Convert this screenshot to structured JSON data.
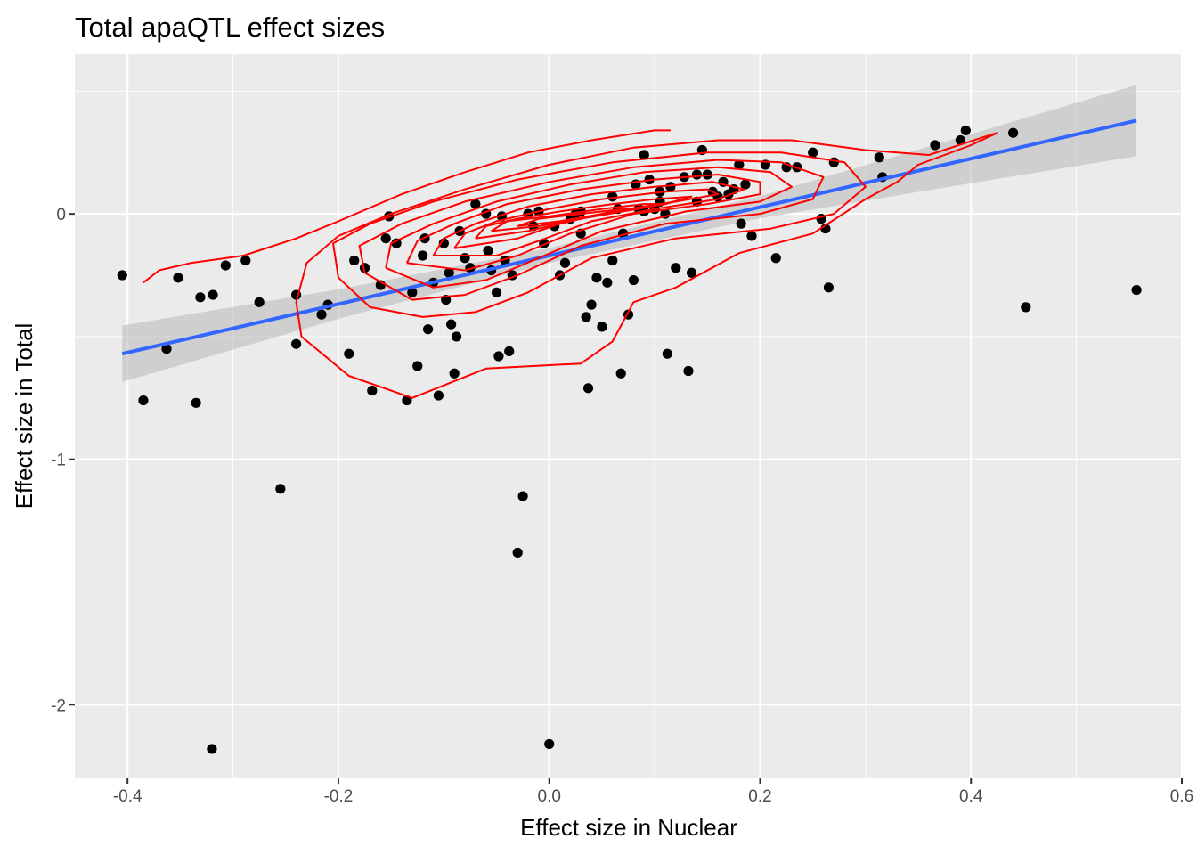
{
  "chart_data": {
    "type": "scatter",
    "title": "Total apaQTL effect sizes",
    "xlabel": "Effect size in Nuclear",
    "ylabel": "Effect size in Total",
    "xlim": [
      -0.45,
      0.6
    ],
    "ylim": [
      -2.3,
      0.65
    ],
    "x_ticks": [
      -0.4,
      -0.2,
      0.0,
      0.2,
      0.4,
      0.6
    ],
    "x_tick_labels": [
      "-0.4",
      "-0.2",
      "0.0",
      "0.2",
      "0.4",
      "0.6"
    ],
    "y_ticks": [
      -2,
      -1,
      0
    ],
    "y_tick_labels": [
      "-2",
      "-1",
      "0"
    ],
    "grid": true,
    "colors": {
      "panel": "#EBEBEB",
      "grid": "#FFFFFF",
      "points": "#000000",
      "fit_line": "#3366FF",
      "confidence_band": "#BDBDBD",
      "density_contours": "#FF0000"
    },
    "regression": {
      "method": "lm",
      "x": [
        -0.405,
        0.557
      ],
      "y": [
        -0.57,
        0.38
      ],
      "se_at_x": [
        -0.405,
        -0.2,
        0.0,
        0.2,
        0.4,
        0.557
      ],
      "se_halfwidth": [
        0.115,
        0.06,
        0.03,
        0.045,
        0.1,
        0.145
      ]
    },
    "points": [
      {
        "x": -0.405,
        "y": -0.25
      },
      {
        "x": -0.385,
        "y": -0.76
      },
      {
        "x": -0.363,
        "y": -0.55
      },
      {
        "x": -0.352,
        "y": -0.26
      },
      {
        "x": -0.335,
        "y": -0.77
      },
      {
        "x": -0.331,
        "y": -0.34
      },
      {
        "x": -0.319,
        "y": -0.33
      },
      {
        "x": -0.307,
        "y": -0.21
      },
      {
        "x": -0.288,
        "y": -0.19
      },
      {
        "x": -0.275,
        "y": -0.36
      },
      {
        "x": -0.24,
        "y": -0.33
      },
      {
        "x": -0.24,
        "y": -0.53
      },
      {
        "x": -0.216,
        "y": -0.41
      },
      {
        "x": -0.21,
        "y": -0.37
      },
      {
        "x": -0.19,
        "y": -0.57
      },
      {
        "x": -0.185,
        "y": -0.19
      },
      {
        "x": -0.175,
        "y": -0.22
      },
      {
        "x": -0.168,
        "y": -0.72
      },
      {
        "x": -0.16,
        "y": -0.29
      },
      {
        "x": -0.155,
        "y": -0.1
      },
      {
        "x": -0.152,
        "y": -0.01
      },
      {
        "x": -0.145,
        "y": -0.12
      },
      {
        "x": -0.13,
        "y": -0.32
      },
      {
        "x": -0.125,
        "y": -0.62
      },
      {
        "x": -0.12,
        "y": -0.17
      },
      {
        "x": -0.118,
        "y": -0.1
      },
      {
        "x": -0.115,
        "y": -0.47
      },
      {
        "x": -0.105,
        "y": -0.74
      },
      {
        "x": -0.1,
        "y": -0.12
      },
      {
        "x": -0.098,
        "y": -0.35
      },
      {
        "x": -0.095,
        "y": -0.24
      },
      {
        "x": -0.093,
        "y": -0.45
      },
      {
        "x": -0.09,
        "y": -0.65
      },
      {
        "x": -0.088,
        "y": -0.5
      },
      {
        "x": -0.085,
        "y": -0.07
      },
      {
        "x": -0.08,
        "y": -0.18
      },
      {
        "x": -0.075,
        "y": -0.22
      },
      {
        "x": -0.06,
        "y": 0.0
      },
      {
        "x": -0.058,
        "y": -0.15
      },
      {
        "x": -0.055,
        "y": -0.23
      },
      {
        "x": -0.05,
        "y": -0.32
      },
      {
        "x": -0.048,
        "y": -0.58
      },
      {
        "x": -0.045,
        "y": -0.01
      },
      {
        "x": -0.042,
        "y": -0.19
      },
      {
        "x": -0.038,
        "y": -0.56
      },
      {
        "x": -0.035,
        "y": -0.25
      },
      {
        "x": -0.03,
        "y": -1.38
      },
      {
        "x": -0.025,
        "y": -1.15
      },
      {
        "x": -0.02,
        "y": 0.0
      },
      {
        "x": -0.015,
        "y": -0.05
      },
      {
        "x": -0.005,
        "y": -0.12
      },
      {
        "x": 0.0,
        "y": -2.16
      },
      {
        "x": 0.005,
        "y": -0.05
      },
      {
        "x": 0.01,
        "y": -0.25
      },
      {
        "x": 0.015,
        "y": -0.2
      },
      {
        "x": 0.02,
        "y": -0.02
      },
      {
        "x": 0.025,
        "y": 0.0
      },
      {
        "x": 0.03,
        "y": -0.08
      },
      {
        "x": 0.035,
        "y": -0.42
      },
      {
        "x": 0.037,
        "y": -0.71
      },
      {
        "x": 0.04,
        "y": -0.37
      },
      {
        "x": 0.045,
        "y": -0.26
      },
      {
        "x": 0.05,
        "y": -0.46
      },
      {
        "x": 0.055,
        "y": -0.28
      },
      {
        "x": 0.06,
        "y": -0.19
      },
      {
        "x": 0.065,
        "y": 0.02
      },
      {
        "x": 0.068,
        "y": -0.65
      },
      {
        "x": 0.07,
        "y": -0.08
      },
      {
        "x": 0.075,
        "y": -0.41
      },
      {
        "x": 0.08,
        "y": -0.27
      },
      {
        "x": 0.082,
        "y": 0.12
      },
      {
        "x": 0.085,
        "y": 0.02
      },
      {
        "x": 0.09,
        "y": 0.01
      },
      {
        "x": 0.095,
        "y": 0.14
      },
      {
        "x": 0.1,
        "y": 0.02
      },
      {
        "x": 0.105,
        "y": 0.05
      },
      {
        "x": 0.11,
        "y": 0.0
      },
      {
        "x": 0.112,
        "y": -0.57
      },
      {
        "x": 0.115,
        "y": 0.11
      },
      {
        "x": 0.12,
        "y": -0.22
      },
      {
        "x": 0.128,
        "y": 0.15
      },
      {
        "x": 0.132,
        "y": -0.64
      },
      {
        "x": 0.135,
        "y": -0.24
      },
      {
        "x": 0.14,
        "y": 0.05
      },
      {
        "x": 0.145,
        "y": 0.26
      },
      {
        "x": 0.15,
        "y": 0.16
      },
      {
        "x": 0.155,
        "y": 0.09
      },
      {
        "x": 0.16,
        "y": 0.07
      },
      {
        "x": 0.165,
        "y": 0.13
      },
      {
        "x": 0.17,
        "y": 0.08
      },
      {
        "x": 0.175,
        "y": 0.1
      },
      {
        "x": 0.18,
        "y": 0.2
      },
      {
        "x": 0.182,
        "y": -0.04
      },
      {
        "x": 0.186,
        "y": 0.12
      },
      {
        "x": 0.192,
        "y": -0.09
      },
      {
        "x": 0.205,
        "y": 0.2
      },
      {
        "x": 0.215,
        "y": -0.18
      },
      {
        "x": 0.225,
        "y": 0.19
      },
      {
        "x": 0.235,
        "y": 0.19
      },
      {
        "x": 0.25,
        "y": 0.25
      },
      {
        "x": 0.258,
        "y": -0.02
      },
      {
        "x": 0.262,
        "y": -0.06
      },
      {
        "x": 0.265,
        "y": -0.3
      },
      {
        "x": 0.27,
        "y": 0.21
      },
      {
        "x": 0.313,
        "y": 0.23
      },
      {
        "x": 0.316,
        "y": 0.15
      },
      {
        "x": 0.366,
        "y": 0.28
      },
      {
        "x": 0.39,
        "y": 0.3
      },
      {
        "x": 0.395,
        "y": 0.34
      },
      {
        "x": 0.44,
        "y": 0.33
      },
      {
        "x": 0.452,
        "y": -0.38
      },
      {
        "x": 0.557,
        "y": -0.31
      },
      {
        "x": -0.255,
        "y": -1.12
      },
      {
        "x": -0.32,
        "y": -2.18
      },
      {
        "x": -0.135,
        "y": -0.76
      },
      {
        "x": 0.105,
        "y": 0.09
      },
      {
        "x": 0.06,
        "y": 0.07
      },
      {
        "x": 0.03,
        "y": 0.01
      },
      {
        "x": -0.01,
        "y": 0.01
      },
      {
        "x": -0.07,
        "y": 0.04
      },
      {
        "x": -0.11,
        "y": -0.28
      },
      {
        "x": 0.14,
        "y": 0.16
      },
      {
        "x": 0.09,
        "y": 0.24
      }
    ],
    "density_contours": [
      [
        [
          -0.385,
          -0.28
        ],
        [
          -0.37,
          -0.23
        ],
        [
          -0.34,
          -0.2
        ],
        [
          -0.29,
          -0.17
        ],
        [
          -0.24,
          -0.1
        ],
        [
          -0.2,
          -0.03
        ],
        [
          -0.14,
          0.08
        ],
        [
          -0.08,
          0.17
        ],
        [
          -0.02,
          0.25
        ],
        [
          0.04,
          0.3
        ],
        [
          0.1,
          0.34
        ],
        [
          0.115,
          0.34
        ]
      ],
      [
        [
          -0.235,
          -0.5
        ],
        [
          -0.24,
          -0.36
        ],
        [
          -0.23,
          -0.2
        ],
        [
          -0.2,
          -0.09
        ],
        [
          -0.15,
          0.0
        ],
        [
          -0.08,
          0.1
        ],
        [
          0.0,
          0.2
        ],
        [
          0.08,
          0.27
        ],
        [
          0.16,
          0.3
        ],
        [
          0.23,
          0.3
        ],
        [
          0.3,
          0.26
        ],
        [
          0.36,
          0.24
        ],
        [
          0.41,
          0.31
        ],
        [
          0.425,
          0.33
        ],
        [
          0.4,
          0.28
        ],
        [
          0.35,
          0.2
        ],
        [
          0.33,
          0.13
        ],
        [
          0.3,
          0.06
        ],
        [
          0.25,
          -0.08
        ],
        [
          0.18,
          -0.16
        ],
        [
          0.12,
          -0.3
        ],
        [
          0.08,
          -0.36
        ],
        [
          0.06,
          -0.52
        ],
        [
          0.03,
          -0.61
        ],
        [
          -0.06,
          -0.63
        ],
        [
          -0.13,
          -0.75
        ],
        [
          -0.19,
          -0.66
        ],
        [
          -0.235,
          -0.5
        ]
      ],
      [
        [
          -0.2,
          -0.26
        ],
        [
          -0.205,
          -0.12
        ],
        [
          -0.17,
          -0.04
        ],
        [
          -0.11,
          0.05
        ],
        [
          -0.03,
          0.14
        ],
        [
          0.06,
          0.21
        ],
        [
          0.15,
          0.25
        ],
        [
          0.22,
          0.25
        ],
        [
          0.28,
          0.21
        ],
        [
          0.3,
          0.11
        ],
        [
          0.27,
          0.0
        ],
        [
          0.21,
          -0.06
        ],
        [
          0.12,
          -0.1
        ],
        [
          0.04,
          -0.18
        ],
        [
          -0.02,
          -0.32
        ],
        [
          -0.07,
          -0.4
        ],
        [
          -0.12,
          -0.42
        ],
        [
          -0.17,
          -0.38
        ],
        [
          -0.2,
          -0.26
        ]
      ],
      [
        [
          -0.175,
          -0.24
        ],
        [
          -0.18,
          -0.13
        ],
        [
          -0.14,
          -0.04
        ],
        [
          -0.08,
          0.05
        ],
        [
          0.0,
          0.13
        ],
        [
          0.08,
          0.19
        ],
        [
          0.16,
          0.22
        ],
        [
          0.22,
          0.21
        ],
        [
          0.26,
          0.15
        ],
        [
          0.25,
          0.06
        ],
        [
          0.2,
          0.0
        ],
        [
          0.11,
          -0.04
        ],
        [
          0.03,
          -0.13
        ],
        [
          -0.03,
          -0.25
        ],
        [
          -0.08,
          -0.33
        ],
        [
          -0.13,
          -0.35
        ],
        [
          -0.175,
          -0.24
        ]
      ],
      [
        [
          -0.155,
          -0.22
        ],
        [
          -0.15,
          -0.12
        ],
        [
          -0.11,
          -0.04
        ],
        [
          -0.05,
          0.05
        ],
        [
          0.02,
          0.12
        ],
        [
          0.09,
          0.17
        ],
        [
          0.16,
          0.19
        ],
        [
          0.21,
          0.17
        ],
        [
          0.23,
          0.11
        ],
        [
          0.2,
          0.05
        ],
        [
          0.13,
          0.01
        ],
        [
          0.05,
          -0.07
        ],
        [
          -0.01,
          -0.18
        ],
        [
          -0.06,
          -0.27
        ],
        [
          -0.11,
          -0.3
        ],
        [
          -0.155,
          -0.22
        ]
      ],
      [
        [
          -0.135,
          -0.2
        ],
        [
          -0.125,
          -0.11
        ],
        [
          -0.09,
          -0.04
        ],
        [
          -0.04,
          0.04
        ],
        [
          0.03,
          0.1
        ],
        [
          0.1,
          0.14
        ],
        [
          0.16,
          0.16
        ],
        [
          0.2,
          0.13
        ],
        [
          0.2,
          0.08
        ],
        [
          0.15,
          0.04
        ],
        [
          0.08,
          0.0
        ],
        [
          0.02,
          -0.08
        ],
        [
          -0.03,
          -0.17
        ],
        [
          -0.08,
          -0.23
        ],
        [
          -0.135,
          -0.2
        ]
      ],
      [
        [
          -0.11,
          -0.17
        ],
        [
          -0.1,
          -0.1
        ],
        [
          -0.07,
          -0.04
        ],
        [
          -0.02,
          0.03
        ],
        [
          0.04,
          0.08
        ],
        [
          0.1,
          0.11
        ],
        [
          0.155,
          0.13
        ],
        [
          0.185,
          0.1
        ],
        [
          0.16,
          0.06
        ],
        [
          0.1,
          0.02
        ],
        [
          0.04,
          -0.03
        ],
        [
          -0.01,
          -0.11
        ],
        [
          -0.05,
          -0.17
        ],
        [
          -0.11,
          -0.17
        ]
      ],
      [
        [
          -0.09,
          -0.14
        ],
        [
          -0.08,
          -0.08
        ],
        [
          -0.05,
          -0.03
        ],
        [
          0.0,
          0.02
        ],
        [
          0.05,
          0.06
        ],
        [
          0.11,
          0.09
        ],
        [
          0.15,
          0.1
        ],
        [
          0.16,
          0.08
        ],
        [
          0.12,
          0.05
        ],
        [
          0.06,
          0.01
        ],
        [
          0.01,
          -0.04
        ],
        [
          -0.03,
          -0.1
        ],
        [
          -0.09,
          -0.14
        ]
      ],
      [
        [
          -0.07,
          -0.1
        ],
        [
          -0.06,
          -0.05
        ],
        [
          -0.03,
          -0.02
        ],
        [
          0.01,
          0.01
        ],
        [
          0.06,
          0.04
        ],
        [
          0.1,
          0.06
        ],
        [
          0.135,
          0.07
        ],
        [
          0.11,
          0.04
        ],
        [
          0.06,
          0.01
        ],
        [
          0.02,
          -0.03
        ],
        [
          -0.02,
          -0.07
        ],
        [
          -0.07,
          -0.1
        ]
      ],
      [
        [
          -0.055,
          -0.07
        ],
        [
          -0.04,
          -0.03
        ],
        [
          0.0,
          -0.01
        ],
        [
          0.05,
          0.02
        ],
        [
          0.09,
          0.04
        ],
        [
          0.11,
          0.04
        ],
        [
          0.07,
          0.01
        ],
        [
          0.03,
          -0.02
        ],
        [
          -0.01,
          -0.05
        ],
        [
          -0.055,
          -0.07
        ]
      ],
      [
        [
          -0.03,
          -0.05
        ],
        [
          -0.01,
          -0.02
        ],
        [
          0.03,
          0.0
        ],
        [
          0.07,
          0.02
        ],
        [
          0.085,
          0.02
        ],
        [
          0.05,
          0.0
        ],
        [
          0.01,
          -0.03
        ],
        [
          -0.03,
          -0.05
        ]
      ]
    ]
  }
}
